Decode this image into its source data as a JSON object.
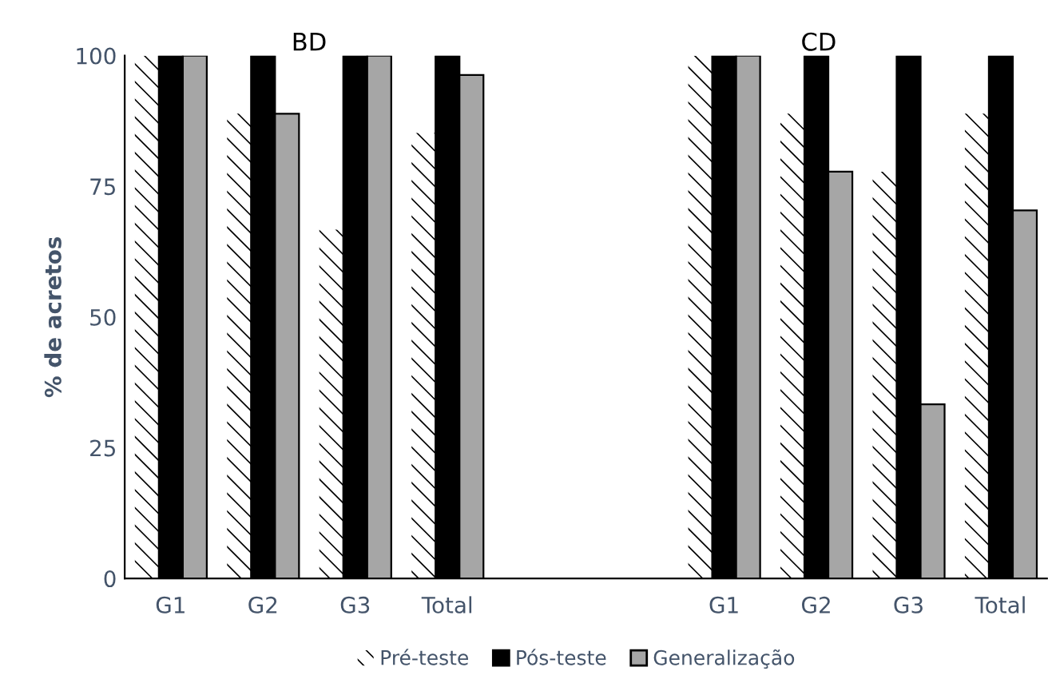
{
  "chart_data": {
    "type": "bar",
    "ylabel": "% de acretos",
    "annotations": [
      "BD",
      "CD"
    ],
    "categories": [
      "G1",
      "G2",
      "G3",
      "Total",
      null,
      null,
      "G1",
      "G2",
      "G3",
      "Total"
    ],
    "series": [
      {
        "name": "Pré-teste",
        "color": "#ffffff",
        "values": [
          100,
          88.9,
          66.7,
          85.2,
          null,
          null,
          100,
          88.9,
          77.8,
          88.9
        ]
      },
      {
        "name": "Pós-teste",
        "color": "#000000",
        "values": [
          100,
          100,
          100,
          100,
          null,
          null,
          100,
          100,
          100,
          100
        ]
      },
      {
        "name": "Generalização",
        "color": "#a6a6a6",
        "values": [
          100,
          88.9,
          100,
          96.3,
          null,
          null,
          100,
          77.8,
          33.3,
          70.4
        ]
      }
    ],
    "ylim": [
      0,
      100
    ],
    "yticks": [
      0,
      25,
      50,
      75,
      100
    ],
    "grid": false,
    "legend": "bottom"
  }
}
